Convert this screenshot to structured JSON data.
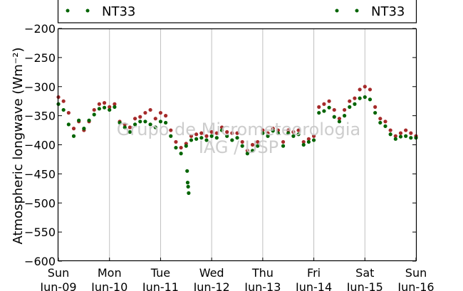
{
  "chart_data": {
    "type": "scatter",
    "title": "",
    "ylabel": "Atmospheric longwave (Wm⁻²)",
    "ylim": [
      -600,
      -200
    ],
    "yticks": [
      -200,
      -250,
      -300,
      -350,
      -400,
      -450,
      -500,
      -550,
      -600
    ],
    "xlim": [
      0,
      7
    ],
    "xticks": [
      {
        "day": "Sun",
        "date": "Jun-09",
        "x": 0
      },
      {
        "day": "Mon",
        "date": "Jun-10",
        "x": 1
      },
      {
        "day": "Tue",
        "date": "Jun-11",
        "x": 2
      },
      {
        "day": "Wed",
        "date": "Jun-12",
        "x": 3
      },
      {
        "day": "Thu",
        "date": "Jun-13",
        "x": 4
      },
      {
        "day": "Fri",
        "date": "Jun-14",
        "x": 5
      },
      {
        "day": "Sat",
        "date": "Jun-15",
        "x": 6
      },
      {
        "day": "Sun",
        "date": "Jun-16",
        "x": 7
      }
    ],
    "grid": "vertical",
    "legend": [
      {
        "label": "NT33",
        "color": "#006400",
        "position": "top-left"
      },
      {
        "label": "NT33",
        "color": "#006400",
        "position": "top-right"
      }
    ],
    "watermark": [
      "Grupo de Micrometeorologia",
      "IAG / USP"
    ],
    "series": [
      {
        "color": "#a52a2a",
        "x": [
          0.0,
          0.1,
          0.2,
          0.3,
          0.4,
          0.5,
          0.6,
          0.7,
          0.8,
          0.9,
          1.0,
          1.1,
          1.2,
          1.3,
          1.4,
          1.5,
          1.6,
          1.7,
          1.8,
          1.9,
          2.0,
          2.1,
          2.2,
          2.3,
          2.4,
          2.5,
          2.6,
          2.7,
          2.8,
          2.9,
          3.0,
          3.1,
          3.2,
          3.3,
          3.4,
          3.5,
          3.6,
          3.7,
          3.8,
          3.9,
          4.0,
          4.1,
          4.2,
          4.3,
          4.4,
          4.5,
          4.6,
          4.7,
          4.8,
          4.9,
          5.0,
          5.1,
          5.2,
          5.3,
          5.4,
          5.5,
          5.6,
          5.7,
          5.8,
          5.9,
          6.0,
          6.1,
          6.2,
          6.3,
          6.4,
          6.5,
          6.6,
          6.7,
          6.8,
          6.9,
          7.0
        ],
        "y": [
          -318,
          -325,
          -345,
          -372,
          -360,
          -375,
          -360,
          -340,
          -330,
          -328,
          -335,
          -330,
          -360,
          -365,
          -370,
          -355,
          -352,
          -345,
          -340,
          -355,
          -345,
          -350,
          -375,
          -395,
          -405,
          -398,
          -385,
          -382,
          -380,
          -385,
          -378,
          -380,
          -370,
          -378,
          -380,
          -380,
          -395,
          -410,
          -400,
          -395,
          -375,
          -380,
          -372,
          -375,
          -395,
          -375,
          -378,
          -375,
          -395,
          -390,
          -385,
          -335,
          -330,
          -325,
          -340,
          -355,
          -340,
          -325,
          -320,
          -305,
          -300,
          -305,
          -335,
          -355,
          -360,
          -375,
          -385,
          -380,
          -375,
          -380,
          -385
        ]
      },
      {
        "color": "#006400",
        "x": [
          0.0,
          0.1,
          0.2,
          0.3,
          0.4,
          0.5,
          0.6,
          0.7,
          0.8,
          0.9,
          1.0,
          1.1,
          1.2,
          1.3,
          1.4,
          1.5,
          1.6,
          1.7,
          1.8,
          1.9,
          2.0,
          2.1,
          2.2,
          2.3,
          2.4,
          2.5,
          2.6,
          2.7,
          2.8,
          2.9,
          3.0,
          3.1,
          3.2,
          3.3,
          3.4,
          3.5,
          3.6,
          3.7,
          3.8,
          3.9,
          4.0,
          4.1,
          4.2,
          4.3,
          4.4,
          4.5,
          4.6,
          4.7,
          4.8,
          4.9,
          5.0,
          5.1,
          5.2,
          5.3,
          5.4,
          5.5,
          5.6,
          5.7,
          5.8,
          5.9,
          6.0,
          6.1,
          6.2,
          6.3,
          6.4,
          6.5,
          6.6,
          6.7,
          6.8,
          6.9,
          7.0
        ],
        "y": [
          -330,
          -340,
          -365,
          -385,
          -358,
          -372,
          -358,
          -348,
          -338,
          -336,
          -340,
          -335,
          -362,
          -370,
          -378,
          -365,
          -360,
          -360,
          -365,
          -370,
          -360,
          -362,
          -385,
          -405,
          -415,
          -402,
          -392,
          -390,
          -388,
          -392,
          -385,
          -388,
          -375,
          -385,
          -392,
          -388,
          -402,
          -415,
          -410,
          -402,
          -380,
          -385,
          -376,
          -380,
          -402,
          -380,
          -385,
          -382,
          -400,
          -395,
          -392,
          -345,
          -342,
          -336,
          -352,
          -360,
          -350,
          -335,
          -330,
          -320,
          -318,
          -322,
          -345,
          -362,
          -368,
          -382,
          -390,
          -386,
          -385,
          -388,
          -388
        ]
      },
      {
        "color": "#006400",
        "x": [
          2.52,
          2.53,
          2.54,
          2.55
        ],
        "y": [
          -445,
          -465,
          -472,
          -483
        ]
      }
    ]
  }
}
